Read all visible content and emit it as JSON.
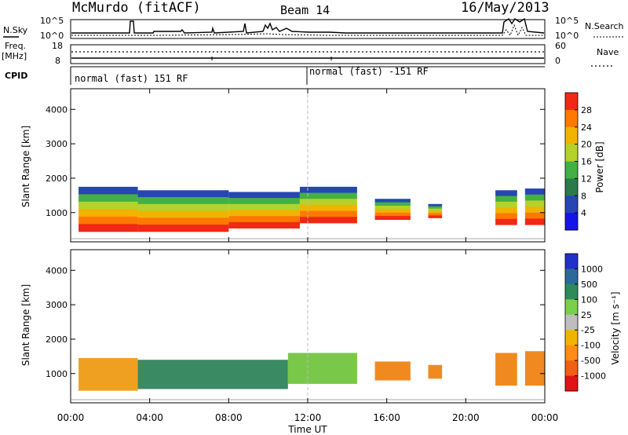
{
  "header": {
    "station": "McMurdo (fitACF)",
    "beam": "Beam 14",
    "date": "16/May/2013"
  },
  "housekeeping": {
    "nsky_label": "N.Sky",
    "nsearch_label": "N.Search",
    "nsky_ticks": [
      "10^5",
      "10^0"
    ],
    "nsearch_ticks": [
      "10^5",
      "10^0"
    ],
    "freq_label": "Freq.",
    "freq_unit": "[MHz]",
    "freq_ticks": [
      "18",
      "8"
    ],
    "nave_label": "Nave",
    "nave_ticks": [
      "60",
      "0"
    ],
    "cpid_label": "CPID",
    "cpid_segments": [
      "normal (fast) 151 RF",
      "normal (fast) -151 RF"
    ]
  },
  "chart_data": [
    {
      "type": "heatmap",
      "title": "Power",
      "ylabel": "Slant Range [km]",
      "xlabel": "Time UT",
      "x_ticks": [
        "00:00",
        "04:00",
        "08:00",
        "12:00",
        "16:00",
        "20:00",
        "00:00"
      ],
      "y_ticks": [
        "1000",
        "2000",
        "3000",
        "4000"
      ],
      "ylim": [
        150,
        4600
      ],
      "colorbar_label": "Power [dB]",
      "colorbar_ticks": [
        "4",
        "8",
        "12",
        "16",
        "20",
        "24",
        "28"
      ],
      "colorbar_colors": [
        "#1414e6",
        "#2646b4",
        "#2a7a4a",
        "#44b044",
        "#b4d22a",
        "#f0b400",
        "#ff7800",
        "#f02814"
      ],
      "regions": [
        {
          "t0": 0.4,
          "t1": 3.4,
          "r0": 450,
          "r1": 1750
        },
        {
          "t0": 3.4,
          "t1": 8.0,
          "r0": 450,
          "r1": 1650
        },
        {
          "t0": 8.0,
          "t1": 11.6,
          "r0": 550,
          "r1": 1600
        },
        {
          "t0": 11.6,
          "t1": 14.5,
          "r0": 700,
          "r1": 1750
        },
        {
          "t0": 15.4,
          "t1": 17.2,
          "r0": 800,
          "r1": 1400
        },
        {
          "t0": 18.1,
          "t1": 18.8,
          "r0": 850,
          "r1": 1250
        },
        {
          "t0": 21.5,
          "t1": 22.6,
          "r0": 650,
          "r1": 1650
        },
        {
          "t0": 23.0,
          "t1": 24.0,
          "r0": 650,
          "r1": 1700
        }
      ]
    },
    {
      "type": "heatmap",
      "ylabel": "Slant Range [km]",
      "xlabel": "Time UT",
      "x_ticks": [
        "00:00",
        "04:00",
        "08:00",
        "12:00",
        "16:00",
        "20:00",
        "00:00"
      ],
      "y_ticks": [
        "1000",
        "2000",
        "3000",
        "4000"
      ],
      "ylim": [
        150,
        4600
      ],
      "colorbar_label": "Velocity [m s⁻¹]",
      "colorbar_ticks": [
        "1000",
        "500",
        "100",
        "25",
        "-25",
        "-100",
        "-500",
        "-1000"
      ],
      "colorbar_colors": [
        "#2030c8",
        "#2a6a9a",
        "#2e8a5a",
        "#7ad04a",
        "#bebebe",
        "#f0b400",
        "#ff8c14",
        "#f06014",
        "#e01414"
      ],
      "regions": [
        {
          "t0": 0.4,
          "t1": 3.4,
          "r0": 500,
          "r1": 1450,
          "color": "#f0a020"
        },
        {
          "t0": 3.4,
          "t1": 11.0,
          "r0": 550,
          "r1": 1400,
          "color": "#3a8a64"
        },
        {
          "t0": 11.0,
          "t1": 14.5,
          "r0": 700,
          "r1": 1600,
          "color": "#7ac84a"
        },
        {
          "t0": 15.4,
          "t1": 17.2,
          "r0": 800,
          "r1": 1350,
          "color": "#f08a20"
        },
        {
          "t0": 18.1,
          "t1": 18.8,
          "r0": 850,
          "r1": 1250,
          "color": "#f08a20"
        },
        {
          "t0": 21.5,
          "t1": 22.6,
          "r0": 650,
          "r1": 1600,
          "color": "#f08a20"
        },
        {
          "t0": 23.0,
          "t1": 24.0,
          "r0": 650,
          "r1": 1650,
          "color": "#f08a20"
        }
      ]
    }
  ]
}
